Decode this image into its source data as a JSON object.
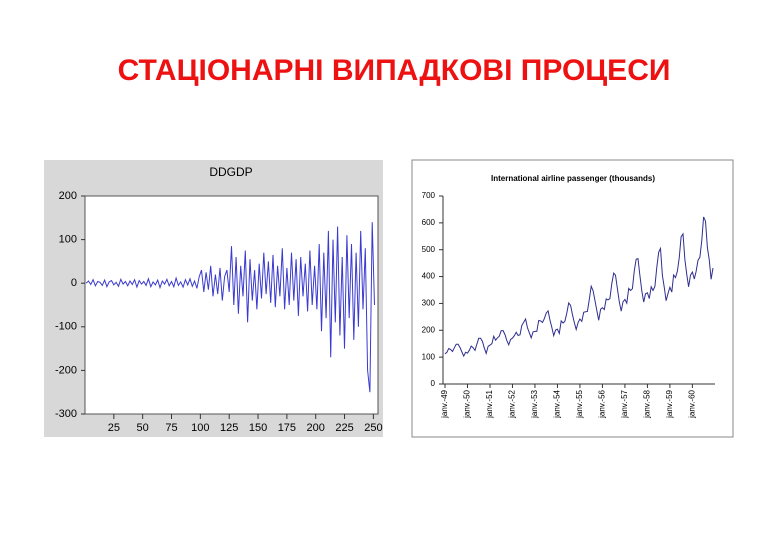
{
  "title": "СТАЦІОНАРНІ ВИПАДКОВІ ПРОЦЕСИ",
  "chart_data": [
    {
      "type": "line",
      "title": "DDGDP",
      "x": [
        1,
        3,
        5,
        7,
        9,
        11,
        13,
        15,
        17,
        19,
        21,
        23,
        25,
        27,
        29,
        31,
        33,
        35,
        37,
        39,
        41,
        43,
        45,
        47,
        49,
        51,
        53,
        55,
        57,
        59,
        61,
        63,
        65,
        67,
        69,
        71,
        73,
        75,
        77,
        79,
        81,
        83,
        85,
        87,
        89,
        91,
        93,
        95,
        97,
        99,
        101,
        103,
        105,
        107,
        109,
        111,
        113,
        115,
        117,
        119,
        121,
        123,
        125,
        127,
        129,
        131,
        133,
        135,
        137,
        139,
        141,
        143,
        145,
        147,
        149,
        151,
        153,
        155,
        157,
        159,
        161,
        163,
        165,
        167,
        169,
        171,
        173,
        175,
        177,
        179,
        181,
        183,
        185,
        187,
        189,
        191,
        193,
        195,
        197,
        199,
        201,
        203,
        205,
        207,
        209,
        211,
        213,
        215,
        217,
        219,
        221,
        223,
        225,
        227,
        229,
        231,
        233,
        235,
        237,
        239,
        241,
        243,
        245,
        247,
        249,
        251
      ],
      "series": [
        {
          "color": "#3a3ad0",
          "values": [
            0,
            5,
            -3,
            8,
            -6,
            4,
            2,
            -5,
            7,
            -8,
            3,
            6,
            -4,
            2,
            -7,
            9,
            -2,
            4,
            -6,
            5,
            -3,
            8,
            -9,
            6,
            -2,
            4,
            -5,
            10,
            -8,
            3,
            -4,
            7,
            -10,
            5,
            -2,
            9,
            -6,
            4,
            -8,
            12,
            -5,
            3,
            -9,
            8,
            -4,
            10,
            -7,
            5,
            -12,
            15,
            30,
            -20,
            25,
            -15,
            40,
            -30,
            20,
            -25,
            35,
            -40,
            15,
            30,
            -20,
            85,
            -50,
            60,
            -70,
            40,
            -30,
            75,
            -90,
            55,
            -40,
            30,
            -60,
            45,
            -35,
            70,
            -25,
            50,
            -45,
            65,
            -55,
            40,
            -30,
            80,
            -60,
            35,
            -50,
            70,
            -40,
            55,
            -75,
            60,
            -30,
            45,
            -65,
            75,
            -50,
            40,
            -60,
            90,
            -110,
            70,
            -80,
            120,
            -170,
            100,
            -90,
            130,
            -120,
            60,
            -150,
            110,
            -80,
            90,
            -130,
            70,
            -100,
            120,
            -60,
            80,
            -200,
            -250,
            140,
            -50
          ]
        }
      ],
      "xlim": [
        0,
        254
      ],
      "xticks": [
        25,
        50,
        75,
        100,
        125,
        150,
        175,
        200,
        225,
        250
      ],
      "ylim": [
        -300,
        200
      ],
      "yticks": [
        -300,
        -200,
        -100,
        0,
        100,
        200
      ]
    },
    {
      "type": "line",
      "title": "International airline passenger (thousands)",
      "categories": [
        "janv.-49",
        null,
        null,
        null,
        null,
        null,
        null,
        null,
        null,
        null,
        null,
        null,
        "janv.-50",
        null,
        null,
        null,
        null,
        null,
        null,
        null,
        null,
        null,
        null,
        null,
        "janv.-51",
        null,
        null,
        null,
        null,
        null,
        null,
        null,
        null,
        null,
        null,
        null,
        "janv.-52",
        null,
        null,
        null,
        null,
        null,
        null,
        null,
        null,
        null,
        null,
        null,
        "janv.-53",
        null,
        null,
        null,
        null,
        null,
        null,
        null,
        null,
        null,
        null,
        null,
        "janv.-54",
        null,
        null,
        null,
        null,
        null,
        null,
        null,
        null,
        null,
        null,
        null,
        "janv.-55",
        null,
        null,
        null,
        null,
        null,
        null,
        null,
        null,
        null,
        null,
        null,
        "janv.-56",
        null,
        null,
        null,
        null,
        null,
        null,
        null,
        null,
        null,
        null,
        null,
        "janv.-57",
        null,
        null,
        null,
        null,
        null,
        null,
        null,
        null,
        null,
        null,
        null,
        "janv.-58",
        null,
        null,
        null,
        null,
        null,
        null,
        null,
        null,
        null,
        null,
        null,
        "janv.-59",
        null,
        null,
        null,
        null,
        null,
        null,
        null,
        null,
        null,
        null,
        null,
        "janv.-60",
        null,
        null,
        null,
        null,
        null,
        null,
        null,
        null,
        null,
        null,
        null
      ],
      "series": [
        {
          "color": "#2e2e8f",
          "values": [
            112,
            118,
            132,
            129,
            121,
            135,
            148,
            148,
            136,
            119,
            104,
            118,
            115,
            126,
            141,
            135,
            125,
            149,
            170,
            170,
            158,
            133,
            114,
            140,
            145,
            150,
            178,
            163,
            172,
            178,
            199,
            199,
            184,
            162,
            146,
            166,
            171,
            180,
            193,
            181,
            183,
            218,
            230,
            242,
            209,
            191,
            172,
            194,
            196,
            196,
            236,
            235,
            229,
            243,
            264,
            272,
            237,
            211,
            180,
            201,
            204,
            188,
            235,
            227,
            234,
            264,
            302,
            293,
            259,
            229,
            203,
            229,
            242,
            233,
            267,
            269,
            270,
            315,
            364,
            347,
            312,
            274,
            237,
            278,
            284,
            277,
            317,
            313,
            318,
            374,
            413,
            405,
            355,
            306,
            271,
            306,
            315,
            301,
            356,
            348,
            355,
            422,
            465,
            467,
            404,
            347,
            305,
            336,
            340,
            318,
            362,
            348,
            363,
            435,
            491,
            505,
            404,
            359,
            310,
            337,
            360,
            342,
            406,
            396,
            420,
            472,
            548,
            559,
            463,
            407,
            362,
            405,
            417,
            391,
            419,
            461,
            472,
            535,
            622,
            606,
            508,
            461,
            390,
            432
          ]
        }
      ],
      "ylim": [
        0,
        700
      ],
      "yticks": [
        0,
        100,
        200,
        300,
        400,
        500,
        600,
        700
      ]
    }
  ]
}
